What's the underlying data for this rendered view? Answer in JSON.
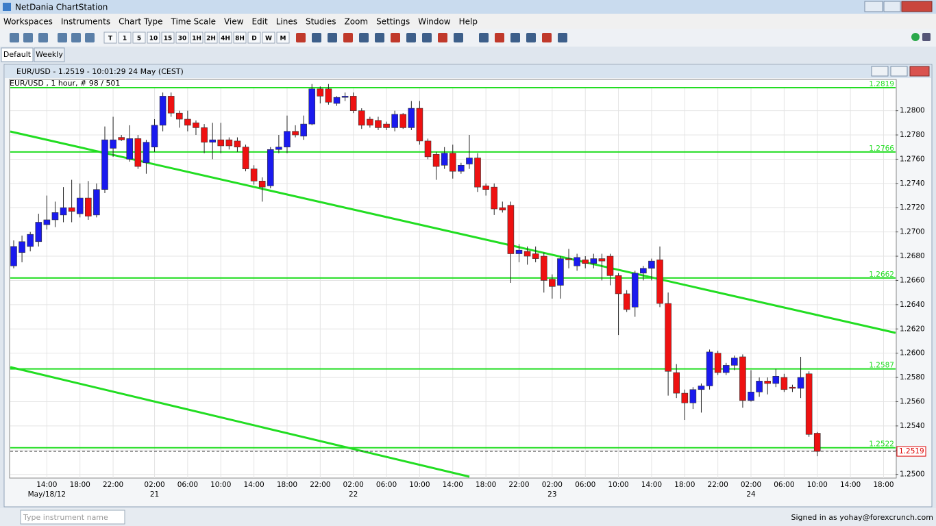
{
  "window": {
    "title": "NetDania ChartStation"
  },
  "menu": [
    "Workspaces",
    "Instruments",
    "Chart Type",
    "Time Scale",
    "View",
    "Edit",
    "Lines",
    "Studies",
    "Zoom",
    "Settings",
    "Window",
    "Help"
  ],
  "toolbar": {
    "intervals": [
      "T",
      "1",
      "5",
      "10",
      "15",
      "30",
      "1H",
      "2H",
      "4H",
      "8H",
      "D",
      "W",
      "M"
    ]
  },
  "tabs": [
    "Default",
    "Weekly"
  ],
  "chart_window": {
    "title": "EUR/USD - 1.2519 - 10:01:29 24 May (CEST)"
  },
  "chart_data": {
    "type": "candlestick",
    "subtitle": "EUR/USD , 1 hour, # 98 / 501",
    "up_color": "#1a1aee",
    "down_color": "#ee1111",
    "line_color": "#22dd22",
    "ylim": [
      1.2497,
      1.2819
    ],
    "yticks": [
      {
        "value": 1.25,
        "label": "1.2500"
      },
      {
        "value": 1.252,
        "label": "1.2520"
      },
      {
        "value": 1.254,
        "label": "1.2540"
      },
      {
        "value": 1.256,
        "label": "1.2560"
      },
      {
        "value": 1.258,
        "label": "1.2580"
      },
      {
        "value": 1.26,
        "label": "1.2600"
      },
      {
        "value": 1.262,
        "label": "1.2620"
      },
      {
        "value": 1.264,
        "label": "1.2640"
      },
      {
        "value": 1.266,
        "label": "1.2660"
      },
      {
        "value": 1.268,
        "label": "1.2680"
      },
      {
        "value": 1.27,
        "label": "1.2700"
      },
      {
        "value": 1.272,
        "label": "1.2720"
      },
      {
        "value": 1.274,
        "label": "1.2740"
      },
      {
        "value": 1.276,
        "label": "1.2760"
      },
      {
        "value": 1.278,
        "label": "1.2780"
      },
      {
        "value": 1.28,
        "label": "1.2800"
      }
    ],
    "x_time_labels": [
      "14:00",
      "18:00",
      "22:00",
      "02:00",
      "06:00",
      "10:00",
      "14:00",
      "18:00",
      "22:00",
      "02:00",
      "06:00",
      "10:00",
      "14:00",
      "18:00",
      "22:00",
      "02:00",
      "06:00",
      "10:00",
      "14:00",
      "18:00",
      "22:00",
      "02:00",
      "06:00",
      "10:00",
      "14:00",
      "18:00"
    ],
    "x_date_labels": [
      "May/18/12",
      null,
      null,
      "21",
      null,
      null,
      null,
      null,
      null,
      "22",
      null,
      null,
      null,
      null,
      null,
      "23",
      null,
      null,
      null,
      null,
      null,
      "24",
      null,
      null,
      null,
      null
    ],
    "hlines": [
      1.2819,
      1.2766,
      1.2662,
      1.2587,
      1.2522
    ],
    "last": 1.2519,
    "candles": [
      [
        1.2672,
        1.2693,
        1.267,
        1.2688
      ],
      [
        1.2683,
        1.2697,
        1.2675,
        1.2692
      ],
      [
        1.2688,
        1.27,
        1.2684,
        1.2698
      ],
      [
        1.2692,
        1.2715,
        1.2688,
        1.2708
      ],
      [
        1.2706,
        1.273,
        1.2702,
        1.271
      ],
      [
        1.271,
        1.2725,
        1.2704,
        1.2716
      ],
      [
        1.2714,
        1.2737,
        1.2708,
        1.272
      ],
      [
        1.272,
        1.2743,
        1.2708,
        1.2717
      ],
      [
        1.2715,
        1.274,
        1.2712,
        1.2728
      ],
      [
        1.2728,
        1.2742,
        1.271,
        1.2713
      ],
      [
        1.2714,
        1.274,
        1.2712,
        1.2735
      ],
      [
        1.2735,
        1.2787,
        1.2732,
        1.2776
      ],
      [
        1.2769,
        1.2795,
        1.2762,
        1.2776
      ],
      [
        1.2778,
        1.278,
        1.2775,
        1.2776
      ],
      [
        1.276,
        1.2788,
        1.2758,
        1.2777
      ],
      [
        1.2777,
        1.278,
        1.2752,
        1.2754
      ],
      [
        1.2757,
        1.2776,
        1.2748,
        1.2774
      ],
      [
        1.277,
        1.2793,
        1.2766,
        1.2788
      ],
      [
        1.2788,
        1.2815,
        1.2783,
        1.2812
      ],
      [
        1.2812,
        1.2815,
        1.2795,
        1.2798
      ],
      [
        1.2798,
        1.28,
        1.2786,
        1.2793
      ],
      [
        1.2793,
        1.28,
        1.2783,
        1.2788
      ],
      [
        1.279,
        1.2792,
        1.278,
        1.2786
      ],
      [
        1.2786,
        1.2789,
        1.2765,
        1.2774
      ],
      [
        1.2774,
        1.279,
        1.276,
        1.2776
      ],
      [
        1.2776,
        1.279,
        1.2765,
        1.2771
      ],
      [
        1.2776,
        1.2778,
        1.2768,
        1.2771
      ],
      [
        1.2775,
        1.2778,
        1.2766,
        1.277
      ],
      [
        1.277,
        1.2772,
        1.275,
        1.2752
      ],
      [
        1.2752,
        1.2755,
        1.2739,
        1.2742
      ],
      [
        1.2742,
        1.2745,
        1.2725,
        1.2737
      ],
      [
        1.2738,
        1.277,
        1.2736,
        1.2768
      ],
      [
        1.2768,
        1.278,
        1.2765,
        1.277
      ],
      [
        1.277,
        1.2796,
        1.2765,
        1.2783
      ],
      [
        1.2783,
        1.2788,
        1.2778,
        1.278
      ],
      [
        1.2779,
        1.2796,
        1.2776,
        1.2789
      ],
      [
        1.2789,
        1.2822,
        1.2788,
        1.2818
      ],
      [
        1.2818,
        1.282,
        1.2806,
        1.2812
      ],
      [
        1.2818,
        1.2822,
        1.2805,
        1.2807
      ],
      [
        1.2806,
        1.2812,
        1.2804,
        1.2811
      ],
      [
        1.2811,
        1.2815,
        1.2808,
        1.2812
      ],
      [
        1.2812,
        1.2815,
        1.2798,
        1.28
      ],
      [
        1.28,
        1.2802,
        1.2785,
        1.2788
      ],
      [
        1.2793,
        1.2795,
        1.2786,
        1.2788
      ],
      [
        1.2792,
        1.2795,
        1.2784,
        1.2786
      ],
      [
        1.2789,
        1.2791,
        1.2784,
        1.2786
      ],
      [
        1.2786,
        1.28,
        1.2783,
        1.2797
      ],
      [
        1.2797,
        1.2798,
        1.2785,
        1.2786
      ],
      [
        1.2786,
        1.2808,
        1.2784,
        1.2802
      ],
      [
        1.2802,
        1.2808,
        1.2772,
        1.2775
      ],
      [
        1.2775,
        1.2777,
        1.276,
        1.2762
      ],
      [
        1.2764,
        1.2766,
        1.2743,
        1.2754
      ],
      [
        1.2755,
        1.277,
        1.2752,
        1.2765
      ],
      [
        1.2765,
        1.2772,
        1.2744,
        1.275
      ],
      [
        1.275,
        1.2757,
        1.2748,
        1.2755
      ],
      [
        1.2756,
        1.278,
        1.2752,
        1.2761
      ],
      [
        1.2761,
        1.2765,
        1.2733,
        1.2737
      ],
      [
        1.2738,
        1.274,
        1.273,
        1.2735
      ],
      [
        1.2737,
        1.274,
        1.2714,
        1.2719
      ],
      [
        1.272,
        1.2725,
        1.2716,
        1.2718
      ],
      [
        1.2722,
        1.2725,
        1.2658,
        1.2682
      ],
      [
        1.2682,
        1.269,
        1.2675,
        1.2685
      ],
      [
        1.2684,
        1.2688,
        1.2673,
        1.268
      ],
      [
        1.2682,
        1.2688,
        1.2675,
        1.2678
      ],
      [
        1.268,
        1.2683,
        1.265,
        1.266
      ],
      [
        1.2661,
        1.2665,
        1.2645,
        1.2655
      ],
      [
        1.2656,
        1.268,
        1.2645,
        1.2678
      ],
      [
        1.2678,
        1.2686,
        1.267,
        1.2677
      ],
      [
        1.2672,
        1.2682,
        1.2668,
        1.2679
      ],
      [
        1.2677,
        1.268,
        1.267,
        1.2674
      ],
      [
        1.2674,
        1.2682,
        1.267,
        1.2678
      ],
      [
        1.2678,
        1.2682,
        1.266,
        1.2676
      ],
      [
        1.268,
        1.2682,
        1.2656,
        1.2664
      ],
      [
        1.2664,
        1.2666,
        1.2615,
        1.2649
      ],
      [
        1.2649,
        1.2652,
        1.2634,
        1.2636
      ],
      [
        1.2638,
        1.2668,
        1.263,
        1.2666
      ],
      [
        1.2666,
        1.2672,
        1.266,
        1.267
      ],
      [
        1.267,
        1.2678,
        1.266,
        1.2676
      ],
      [
        1.2677,
        1.2688,
        1.2638,
        1.2641
      ],
      [
        1.2641,
        1.265,
        1.2565,
        1.2585
      ],
      [
        1.2584,
        1.2591,
        1.2563,
        1.2567
      ],
      [
        1.2567,
        1.257,
        1.2545,
        1.2559
      ],
      [
        1.2559,
        1.2572,
        1.2554,
        1.257
      ],
      [
        1.257,
        1.2575,
        1.2551,
        1.2573
      ],
      [
        1.2573,
        1.2603,
        1.257,
        1.2601
      ],
      [
        1.26,
        1.2602,
        1.2582,
        1.2584
      ],
      [
        1.2584,
        1.2592,
        1.2582,
        1.259
      ],
      [
        1.259,
        1.2598,
        1.2586,
        1.2596
      ],
      [
        1.2597,
        1.2599,
        1.2555,
        1.2561
      ],
      [
        1.2561,
        1.2586,
        1.256,
        1.2568
      ],
      [
        1.2568,
        1.258,
        1.2564,
        1.2577
      ],
      [
        1.2577,
        1.258,
        1.2566,
        1.2575
      ],
      [
        1.2575,
        1.2587,
        1.2572,
        1.2581
      ],
      [
        1.258,
        1.2583,
        1.2568,
        1.257
      ],
      [
        1.2572,
        1.2574,
        1.2568,
        1.2571
      ],
      [
        1.2571,
        1.2597,
        1.2563,
        1.258
      ],
      [
        1.2583,
        1.2585,
        1.2531,
        1.2533
      ],
      [
        1.2534,
        1.2535,
        1.2515,
        1.2519
      ]
    ]
  },
  "statusbar": {
    "placeholder": "Type instrument name",
    "signed_in": "Signed in as yohay@forexcrunch.com"
  }
}
